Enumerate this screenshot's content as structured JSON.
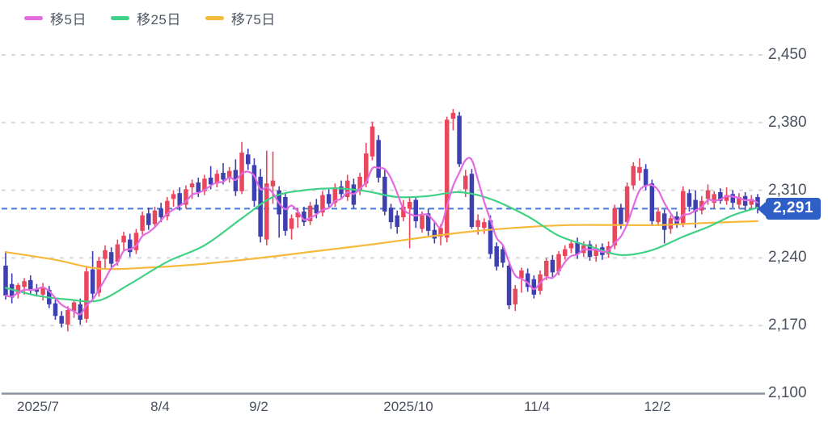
{
  "legend": {
    "items": [
      {
        "label": "移5日",
        "color": "#e26be2"
      },
      {
        "label": "移25日",
        "color": "#3fd186"
      },
      {
        "label": "移75日",
        "color": "#f5ba3c"
      }
    ]
  },
  "axes": {
    "y": {
      "ticks": [
        {
          "label": "2,450",
          "value": 2450
        },
        {
          "label": "2,380",
          "value": 2380
        },
        {
          "label": "2,310",
          "value": 2310
        },
        {
          "label": "2,240",
          "value": 2240
        },
        {
          "label": "2,170",
          "value": 2170
        },
        {
          "label": "2,100",
          "value": 2100
        }
      ]
    },
    "x": {
      "ticks": [
        {
          "label": "2025/7",
          "pos": 0.05
        },
        {
          "label": "8/4",
          "pos": 0.21
        },
        {
          "label": "9/2",
          "pos": 0.34
        },
        {
          "label": "2025/10",
          "pos": 0.537
        },
        {
          "label": "11/4",
          "pos": 0.706
        },
        {
          "label": "12/2",
          "pos": 0.864
        }
      ]
    }
  },
  "price_line": {
    "value": 2291,
    "label": "2,291",
    "line_color": "#4e79d6",
    "badge_color": "#2d5fc6"
  },
  "colors": {
    "up": "#e8475d",
    "down": "#3e40b0",
    "grid": "#d9d9dc",
    "axis_line": "#8b93a1",
    "ma5": "#e26be2",
    "ma25": "#3fd186",
    "ma75": "#f5ba3c",
    "background": "#ffffff"
  },
  "chart_data": {
    "type": "candlestick",
    "title": "",
    "ylim": [
      2100,
      2450
    ],
    "grid": "dashed-horizontal",
    "legend_position": "top-left",
    "last_price": 2291,
    "ma5_window": 5,
    "candles_format": [
      "date",
      "open",
      "high",
      "low",
      "close"
    ],
    "candles": [
      [
        "6/23",
        2232,
        2247,
        2197,
        2201
      ],
      [
        "6/24",
        2213,
        2224,
        2193,
        2199
      ],
      [
        "6/25",
        2203,
        2214,
        2198,
        2212
      ],
      [
        "6/26",
        2210,
        2219,
        2202,
        2216
      ],
      [
        "6/27",
        2217,
        2222,
        2202,
        2206
      ],
      [
        "6/30",
        2208,
        2213,
        2200,
        2205
      ],
      [
        "7/1",
        2202,
        2214,
        2196,
        2209
      ],
      [
        "7/2",
        2207,
        2211,
        2188,
        2192
      ],
      [
        "7/3",
        2193,
        2197,
        2176,
        2180
      ],
      [
        "7/4",
        2180,
        2185,
        2168,
        2172
      ],
      [
        "7/7",
        2171,
        2190,
        2164,
        2186
      ],
      [
        "7/8",
        2185,
        2197,
        2178,
        2194
      ],
      [
        "7/9",
        2192,
        2198,
        2171,
        2176
      ],
      [
        "7/10",
        2177,
        2231,
        2173,
        2226
      ],
      [
        "7/11",
        2228,
        2247,
        2197,
        2203
      ],
      [
        "7/14",
        2204,
        2241,
        2200,
        2237
      ],
      [
        "7/15",
        2239,
        2253,
        2229,
        2248
      ],
      [
        "7/16",
        2246,
        2251,
        2230,
        2234
      ],
      [
        "7/17",
        2236,
        2259,
        2232,
        2254
      ],
      [
        "7/18",
        2256,
        2267,
        2247,
        2263
      ],
      [
        "7/22",
        2259,
        2265,
        2241,
        2246
      ],
      [
        "7/23",
        2248,
        2270,
        2244,
        2266
      ],
      [
        "7/24",
        2268,
        2288,
        2264,
        2284
      ],
      [
        "7/25",
        2286,
        2292,
        2269,
        2274
      ],
      [
        "7/28",
        2275,
        2293,
        2271,
        2289
      ],
      [
        "7/29",
        2291,
        2297,
        2277,
        2282
      ],
      [
        "7/30",
        2283,
        2303,
        2279,
        2299
      ],
      [
        "7/31",
        2301,
        2310,
        2293,
        2306
      ],
      [
        "8/1",
        2307,
        2313,
        2289,
        2294
      ],
      [
        "8/4",
        2295,
        2315,
        2291,
        2311
      ],
      [
        "8/5",
        2313,
        2321,
        2301,
        2317
      ],
      [
        "8/6",
        2318,
        2323,
        2303,
        2308
      ],
      [
        "8/7",
        2309,
        2326,
        2305,
        2322
      ],
      [
        "8/8",
        2323,
        2335,
        2311,
        2316
      ],
      [
        "8/12",
        2317,
        2331,
        2313,
        2327
      ],
      [
        "8/13",
        2328,
        2338,
        2316,
        2321
      ],
      [
        "8/14",
        2322,
        2334,
        2318,
        2330
      ],
      [
        "8/15",
        2331,
        2342,
        2304,
        2309
      ],
      [
        "8/18",
        2309,
        2360,
        2306,
        2349
      ],
      [
        "8/19",
        2347,
        2353,
        2331,
        2337
      ],
      [
        "8/20",
        2336,
        2343,
        2293,
        2299
      ],
      [
        "8/21",
        2324,
        2332,
        2256,
        2262
      ],
      [
        "8/22",
        2259,
        2351,
        2253,
        2317
      ],
      [
        "8/25",
        2314,
        2350,
        2296,
        2320
      ],
      [
        "8/26",
        2310,
        2314,
        2261,
        2285
      ],
      [
        "8/27",
        2303,
        2307,
        2263,
        2268
      ],
      [
        "8/28",
        2270,
        2285,
        2259,
        2281
      ],
      [
        "8/29",
        2282,
        2291,
        2271,
        2287
      ],
      [
        "9/1",
        2288,
        2293,
        2273,
        2277
      ],
      [
        "9/2",
        2278,
        2298,
        2274,
        2294
      ],
      [
        "9/3",
        2295,
        2301,
        2281,
        2286
      ],
      [
        "9/4",
        2287,
        2309,
        2283,
        2305
      ],
      [
        "9/5",
        2306,
        2311,
        2291,
        2296
      ],
      [
        "9/8",
        2297,
        2317,
        2293,
        2313
      ],
      [
        "9/9",
        2314,
        2320,
        2301,
        2306
      ],
      [
        "9/10",
        2303,
        2326,
        2299,
        2320
      ],
      [
        "9/11",
        2316,
        2322,
        2291,
        2295
      ],
      [
        "9/12",
        2309,
        2328,
        2305,
        2324
      ],
      [
        "9/16",
        2317,
        2359,
        2313,
        2348
      ],
      [
        "9/17",
        2345,
        2381,
        2341,
        2376
      ],
      [
        "9/18",
        2362,
        2367,
        2318,
        2323
      ],
      [
        "9/19",
        2324,
        2331,
        2284,
        2288
      ],
      [
        "9/22",
        2292,
        2296,
        2270,
        2277
      ],
      [
        "9/24",
        2284,
        2289,
        2265,
        2272
      ],
      [
        "9/25",
        2282,
        2300,
        2278,
        2293
      ],
      [
        "9/26",
        2291,
        2303,
        2250,
        2298
      ],
      [
        "9/29",
        2300,
        2303,
        2271,
        2278
      ],
      [
        "9/30",
        2270,
        2288,
        2266,
        2284
      ],
      [
        "10/1",
        2286,
        2291,
        2263,
        2268
      ],
      [
        "10/2",
        2269,
        2277,
        2255,
        2260
      ],
      [
        "10/3",
        2262,
        2275,
        2253,
        2271
      ],
      [
        "10/6",
        2261,
        2386,
        2256,
        2383
      ],
      [
        "10/7",
        2384,
        2394,
        2372,
        2390
      ],
      [
        "10/8",
        2387,
        2391,
        2334,
        2337
      ],
      [
        "10/9",
        2311,
        2331,
        2303,
        2325
      ],
      [
        "10/10",
        2327,
        2332,
        2270,
        2272
      ],
      [
        "10/14",
        2272,
        2285,
        2264,
        2279
      ],
      [
        "10/15",
        2271,
        2281,
        2265,
        2277
      ],
      [
        "10/16",
        2279,
        2284,
        2239,
        2244
      ],
      [
        "10/17",
        2252,
        2256,
        2227,
        2231
      ],
      [
        "10/20",
        2249,
        2254,
        2230,
        2235
      ],
      [
        "10/21",
        2232,
        2237,
        2187,
        2191
      ],
      [
        "10/22",
        2192,
        2212,
        2185,
        2208
      ],
      [
        "10/23",
        2219,
        2230,
        2204,
        2227
      ],
      [
        "10/24",
        2224,
        2229,
        2205,
        2210
      ],
      [
        "10/27",
        2218,
        2222,
        2198,
        2202
      ],
      [
        "10/28",
        2206,
        2227,
        2202,
        2223
      ],
      [
        "10/29",
        2221,
        2240,
        2217,
        2237
      ],
      [
        "10/30",
        2238,
        2243,
        2220,
        2225
      ],
      [
        "10/31",
        2226,
        2247,
        2222,
        2244
      ],
      [
        "11/4",
        2242,
        2253,
        2238,
        2249
      ],
      [
        "11/5",
        2250,
        2259,
        2245,
        2255
      ],
      [
        "11/6",
        2256,
        2261,
        2239,
        2244
      ],
      [
        "11/7",
        2245,
        2257,
        2241,
        2253
      ],
      [
        "11/10",
        2254,
        2258,
        2237,
        2241
      ],
      [
        "11/11",
        2242,
        2254,
        2236,
        2250
      ],
      [
        "11/12",
        2251,
        2255,
        2238,
        2243
      ],
      [
        "11/13",
        2244,
        2257,
        2240,
        2252
      ],
      [
        "11/14",
        2253,
        2295,
        2249,
        2291
      ],
      [
        "11/17",
        2292,
        2296,
        2270,
        2275
      ],
      [
        "11/18",
        2277,
        2318,
        2273,
        2314
      ],
      [
        "11/19",
        2315,
        2339,
        2311,
        2335
      ],
      [
        "11/20",
        2328,
        2343,
        2320,
        2334
      ],
      [
        "11/21",
        2332,
        2337,
        2310,
        2315
      ],
      [
        "11/25",
        2317,
        2321,
        2273,
        2278
      ],
      [
        "11/26",
        2277,
        2292,
        2273,
        2288
      ],
      [
        "11/27",
        2286,
        2290,
        2255,
        2269
      ],
      [
        "11/28",
        2270,
        2284,
        2265,
        2281
      ],
      [
        "12/1",
        2283,
        2288,
        2271,
        2275
      ],
      [
        "12/2",
        2276,
        2314,
        2272,
        2309
      ],
      [
        "12/3",
        2307,
        2311,
        2288,
        2293
      ],
      [
        "12/4",
        2300,
        2310,
        2271,
        2288
      ],
      [
        "12/5",
        2289,
        2304,
        2285,
        2299
      ],
      [
        "12/8",
        2301,
        2316,
        2295,
        2310
      ],
      [
        "12/9",
        2297,
        2309,
        2291,
        2306
      ],
      [
        "12/10",
        2308,
        2312,
        2296,
        2299
      ],
      [
        "12/11",
        2299,
        2313,
        2295,
        2305
      ],
      [
        "12/12",
        2306,
        2310,
        2292,
        2297
      ],
      [
        "12/15",
        2295,
        2307,
        2291,
        2303
      ],
      [
        "12/16",
        2304,
        2308,
        2289,
        2294
      ],
      [
        "12/17",
        2295,
        2305,
        2291,
        2301
      ],
      [
        "12/18",
        2303,
        2306,
        2286,
        2291
      ]
    ],
    "ma25_points": [
      [
        0,
        2209
      ],
      [
        5,
        2201
      ],
      [
        10,
        2197
      ],
      [
        15,
        2196
      ],
      [
        20,
        2213
      ],
      [
        26,
        2236
      ],
      [
        32,
        2253
      ],
      [
        38,
        2281
      ],
      [
        43,
        2303
      ],
      [
        48,
        2310
      ],
      [
        53,
        2312
      ],
      [
        58,
        2309
      ],
      [
        63,
        2303
      ],
      [
        68,
        2304
      ],
      [
        73,
        2308
      ],
      [
        78,
        2301
      ],
      [
        84,
        2283
      ],
      [
        89,
        2263
      ],
      [
        94,
        2252
      ],
      [
        99,
        2243
      ],
      [
        104,
        2248
      ],
      [
        109,
        2262
      ],
      [
        113,
        2272
      ],
      [
        117,
        2284
      ],
      [
        121,
        2292
      ]
    ],
    "ma75_points": [
      [
        0,
        2246
      ],
      [
        8,
        2238
      ],
      [
        15,
        2229
      ],
      [
        23,
        2230
      ],
      [
        32,
        2234
      ],
      [
        41,
        2240
      ],
      [
        50,
        2247
      ],
      [
        59,
        2254
      ],
      [
        68,
        2262
      ],
      [
        76,
        2268
      ],
      [
        84,
        2272
      ],
      [
        91,
        2274
      ],
      [
        98,
        2274
      ],
      [
        105,
        2274
      ],
      [
        112,
        2276
      ],
      [
        121,
        2278
      ]
    ]
  }
}
